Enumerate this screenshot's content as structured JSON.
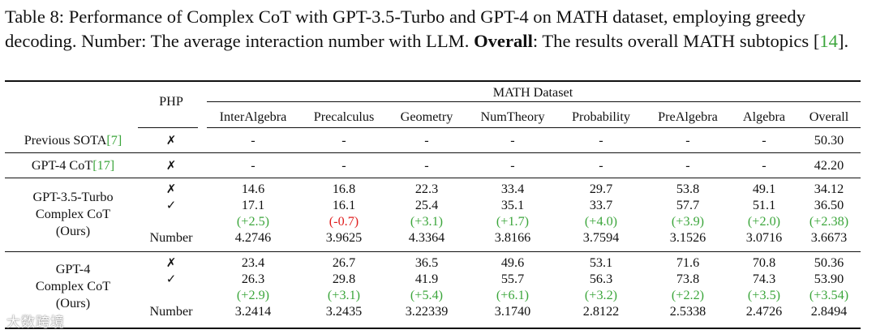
{
  "caption": {
    "label": "Table 8: ",
    "part1": "Performance of Complex CoT with GPT-3.5-Turbo and GPT-4 on MATH dataset, employing greedy decoding. Number: The average interaction number with LLM. ",
    "bold": "Overall",
    "part2": ": The results overall MATH subtopics ",
    "cite_open": "[",
    "cite": "14",
    "cite_close": "]."
  },
  "header": {
    "php": "PHP",
    "group": "MATH Dataset",
    "columns": [
      "InterAlgebra",
      "Precalculus",
      "Geometry",
      "NumTheory",
      "Probability",
      "PreAlgebra",
      "Algebra",
      "Overall"
    ]
  },
  "symbols": {
    "cross": "✗",
    "check": "✓"
  },
  "rows": {
    "sota": {
      "name": "Previous SOTA",
      "cite": "[7]",
      "values": [
        "-",
        "-",
        "-",
        "-",
        "-",
        "-",
        "-",
        "50.30"
      ]
    },
    "gpt4cot": {
      "name": "GPT-4 CoT",
      "cite": "[17]",
      "values": [
        "-",
        "-",
        "-",
        "-",
        "-",
        "-",
        "-",
        "42.20"
      ]
    },
    "gpt35": {
      "name_lines": [
        "GPT-3.5-Turbo",
        "Complex CoT",
        "(Ours)"
      ],
      "without": [
        "14.6",
        "16.8",
        "22.3",
        "33.4",
        "29.7",
        "53.8",
        "49.1",
        "34.12"
      ],
      "with": [
        "17.1",
        "16.1",
        "25.4",
        "35.1",
        "33.7",
        "57.7",
        "51.1",
        "36.50"
      ],
      "delta": [
        "(+2.5)",
        "(-0.7)",
        "(+3.1)",
        "(+1.7)",
        "(+4.0)",
        "(+3.9)",
        "(+2.0)",
        "(+2.38)"
      ],
      "number_label": "Number",
      "number": [
        "4.2746",
        "3.9625",
        "4.3364",
        "3.8166",
        "3.7594",
        "3.1526",
        "3.0716",
        "3.6673"
      ]
    },
    "gpt4": {
      "name_lines": [
        "GPT-4",
        "Complex CoT",
        "(Ours)"
      ],
      "without": [
        "23.4",
        "26.7",
        "36.5",
        "49.6",
        "53.1",
        "71.6",
        "70.8",
        "50.36"
      ],
      "with": [
        "26.3",
        "29.8",
        "41.9",
        "55.7",
        "56.3",
        "73.8",
        "74.3",
        "53.90"
      ],
      "delta": [
        "(+2.9)",
        "(+3.1)",
        "(+5.4)",
        "(+6.1)",
        "(+3.2)",
        "(+2.2)",
        "(+3.5)",
        "(+3.54)"
      ],
      "number_label": "Number",
      "number": [
        "3.2414",
        "3.2435",
        "3.22339",
        "3.1740",
        "2.8122",
        "2.5338",
        "2.4726",
        "2.8494"
      ]
    }
  },
  "colors": {
    "positive": "#3ca63c",
    "negative": "#e02020",
    "citation": "#3ca63c"
  },
  "watermark": "大数跨境"
}
